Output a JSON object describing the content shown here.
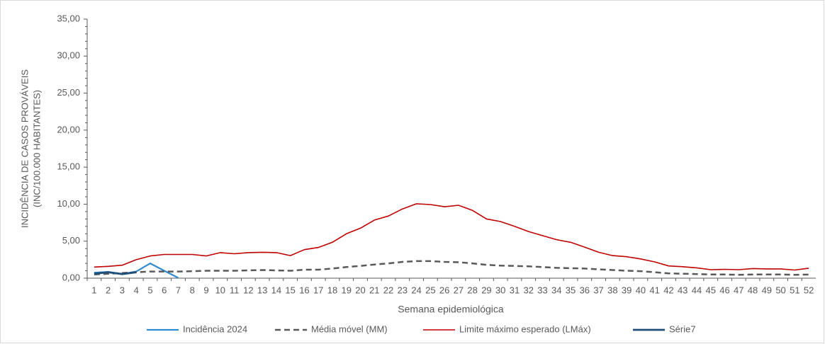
{
  "chart_data": {
    "type": "line",
    "y_label": [
      "INCIDÊNCIA DE CASOS PROVÁVEIS",
      "(INC/100.000 HABITANTES)"
    ],
    "x_label": "Semana epidemiológica",
    "categories": [
      "1",
      "2",
      "3",
      "4",
      "5",
      "6",
      "7",
      "8",
      "9",
      "10",
      "11",
      "12",
      "13",
      "14",
      "15",
      "16",
      "17",
      "18",
      "19",
      "20",
      "21",
      "22",
      "23",
      "24",
      "25",
      "26",
      "27",
      "28",
      "29",
      "30",
      "31",
      "32",
      "33",
      "34",
      "35",
      "36",
      "37",
      "38",
      "39",
      "40",
      "41",
      "42",
      "43",
      "44",
      "45",
      "46",
      "47",
      "48",
      "49",
      "50",
      "51",
      "52"
    ],
    "ylim": [
      0,
      35
    ],
    "yticks": [
      {
        "value": 0,
        "label": "0,00"
      },
      {
        "value": 5,
        "label": "5,00"
      },
      {
        "value": 10,
        "label": "10,00"
      },
      {
        "value": 15,
        "label": "15,00"
      },
      {
        "value": 20,
        "label": "20,00"
      },
      {
        "value": 25,
        "label": "25,00"
      },
      {
        "value": 30,
        "label": "30,00"
      },
      {
        "value": 35,
        "label": "35,00"
      }
    ],
    "grid": false,
    "legend": "bottom",
    "series": [
      {
        "name": "Incidência 2024",
        "color": "#2f8bd0",
        "line_style": "solid",
        "line_width": 2.2,
        "values": [
          0.75,
          0.85,
          0.55,
          0.9,
          2.0,
          1.0,
          0.05,
          null,
          null,
          null,
          null,
          null,
          null,
          null,
          null,
          null,
          null,
          null,
          null,
          null,
          null,
          null,
          null,
          null,
          null,
          null,
          null,
          null,
          null,
          null,
          null,
          null,
          null,
          null,
          null,
          null,
          null,
          null,
          null,
          null,
          null,
          null,
          null,
          null,
          null,
          null,
          null,
          null,
          null,
          null,
          null,
          null
        ]
      },
      {
        "name": "Média móvel (MM)",
        "color": "#595959",
        "line_style": "dashed",
        "line_width": 2.5,
        "values": [
          0.5,
          0.6,
          0.7,
          0.8,
          0.9,
          0.9,
          0.9,
          0.95,
          1.0,
          1.0,
          1.0,
          1.05,
          1.1,
          1.05,
          1.0,
          1.15,
          1.15,
          1.3,
          1.5,
          1.65,
          1.85,
          2.0,
          2.2,
          2.3,
          2.3,
          2.2,
          2.15,
          2.0,
          1.8,
          1.7,
          1.65,
          1.6,
          1.5,
          1.4,
          1.35,
          1.3,
          1.2,
          1.1,
          1.0,
          0.95,
          0.8,
          0.65,
          0.6,
          0.55,
          0.5,
          0.5,
          0.45,
          0.5,
          0.5,
          0.5,
          0.45,
          0.5
        ]
      },
      {
        "name": "Limite máximo esperado (LMáx)",
        "color": "#c00000",
        "line_style": "solid",
        "line_width": 1.6,
        "values": [
          1.5,
          1.6,
          1.75,
          2.5,
          3.0,
          3.2,
          3.2,
          3.2,
          3.0,
          3.45,
          3.3,
          3.45,
          3.5,
          3.45,
          3.05,
          3.85,
          4.15,
          4.85,
          6.0,
          6.75,
          7.85,
          8.4,
          9.35,
          10.05,
          9.95,
          9.65,
          9.85,
          9.15,
          8.0,
          7.65,
          7.0,
          6.3,
          5.75,
          5.2,
          4.85,
          4.2,
          3.5,
          3.05,
          2.9,
          2.6,
          2.2,
          1.65,
          1.55,
          1.4,
          1.15,
          1.2,
          1.15,
          1.3,
          1.25,
          1.25,
          1.1,
          1.35
        ]
      },
      {
        "name": "Série7",
        "color": "#1f4e79",
        "line_style": "solid",
        "line_width": 2.8,
        "values": [
          0.6,
          0.8,
          0.55,
          0.8,
          null,
          null,
          null,
          null,
          null,
          null,
          null,
          null,
          null,
          null,
          null,
          null,
          null,
          null,
          null,
          null,
          null,
          null,
          null,
          null,
          null,
          null,
          null,
          null,
          null,
          null,
          null,
          null,
          null,
          null,
          null,
          null,
          null,
          null,
          null,
          null,
          null,
          null,
          null,
          null,
          null,
          null,
          null,
          null,
          null,
          null,
          null,
          null
        ]
      }
    ]
  }
}
